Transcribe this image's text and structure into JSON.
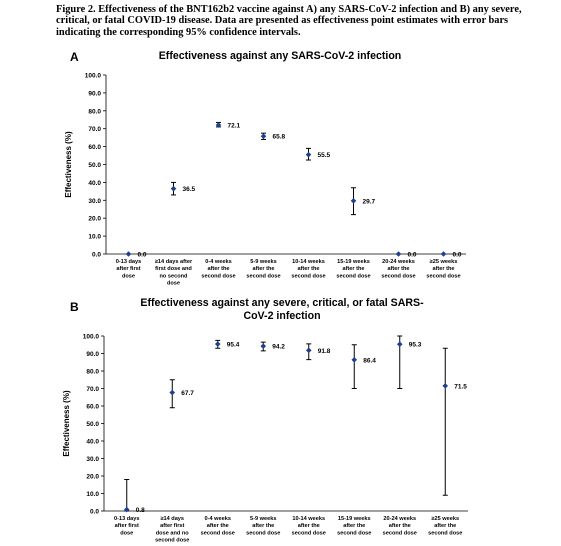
{
  "caption": "Figure 2. Effectiveness of the BNT162b2 vaccine against A) any SARS-CoV-2 infection and B) any severe, critical, or fatal COVID-19 disease. Data are presented as effectiveness point estimates with error bars indicating the corresponding 95% confidence intervals.",
  "colors": {
    "marker": "#1f3f8f",
    "axis": "#000000",
    "text": "#000000"
  },
  "chart_data": [
    {
      "panel": "A",
      "type": "scatter",
      "title": "Effectiveness against any SARS-CoV-2 infection",
      "ylabel": "Effectiveness (%)",
      "xlabel": "",
      "ylim": [
        0,
        100
      ],
      "yticks": [
        "0.0",
        "10.0",
        "20.0",
        "30.0",
        "40.0",
        "50.0",
        "60.0",
        "70.0",
        "80.0",
        "90.0",
        "100.0"
      ],
      "grid": false,
      "categories": [
        [
          "0-13 days",
          "after first",
          "dose"
        ],
        [
          "≥14 days after",
          "first dose and",
          "no second",
          "dose"
        ],
        [
          "0-4 weeks",
          "after the",
          "second dose"
        ],
        [
          "5-9 weeks",
          "after the",
          "second dose"
        ],
        [
          "10-14 weeks",
          "after the",
          "second dose"
        ],
        [
          "15-19 weeks",
          "after the",
          "second dose"
        ],
        [
          "20-24 weeks",
          "after the",
          "second dose"
        ],
        [
          "≥25 weeks",
          "after the",
          "second dose"
        ]
      ],
      "values": [
        0.0,
        36.5,
        72.1,
        65.8,
        55.5,
        29.7,
        0.0,
        0.0
      ],
      "labels": [
        "0.0",
        "36.5",
        "72.1",
        "65.8",
        "55.5",
        "29.7",
        "0.0",
        "0.0"
      ],
      "ci_low": [
        0.0,
        33.0,
        71.0,
        64.0,
        52.5,
        22.0,
        0.0,
        0.0
      ],
      "ci_high": [
        0.0,
        40.0,
        73.5,
        67.5,
        59.0,
        37.0,
        0.0,
        0.0
      ]
    },
    {
      "panel": "B",
      "type": "scatter",
      "title": "Effectiveness against any severe, critical, or fatal SARS-CoV-2 infection",
      "ylabel": "Effectiveness (%)",
      "xlabel": "",
      "ylim": [
        0,
        100
      ],
      "yticks": [
        "0.0",
        "10.0",
        "20.0",
        "30.0",
        "40.0",
        "50.0",
        "60.0",
        "70.0",
        "80.0",
        "90.0",
        "100.0"
      ],
      "grid": false,
      "categories": [
        [
          "0-13 days",
          "after first",
          "dose"
        ],
        [
          "≥14 days",
          "after first",
          "dose and no",
          "second dose"
        ],
        [
          "0-4 weeks",
          "after the",
          "second dose"
        ],
        [
          "5-9 weeks",
          "after the",
          "second dose"
        ],
        [
          "10-14 weeks",
          "after the",
          "second dose"
        ],
        [
          "15-19 weeks",
          "after the",
          "second dose"
        ],
        [
          "20-24 weeks",
          "after the",
          "second dose"
        ],
        [
          "≥25 weeks",
          "after the",
          "second dose"
        ]
      ],
      "values": [
        0.8,
        67.7,
        95.4,
        94.2,
        91.8,
        86.4,
        95.3,
        71.5
      ],
      "labels": [
        "0.8",
        "67.7",
        "95.4",
        "94.2",
        "91.8",
        "86.4",
        "95.3",
        "71.5"
      ],
      "ci_low": [
        0.0,
        59.0,
        93.0,
        91.5,
        86.5,
        70.0,
        70.0,
        9.0
      ],
      "ci_high": [
        18.0,
        75.0,
        97.5,
        96.5,
        95.5,
        95.0,
        100.0,
        93.0
      ]
    }
  ]
}
